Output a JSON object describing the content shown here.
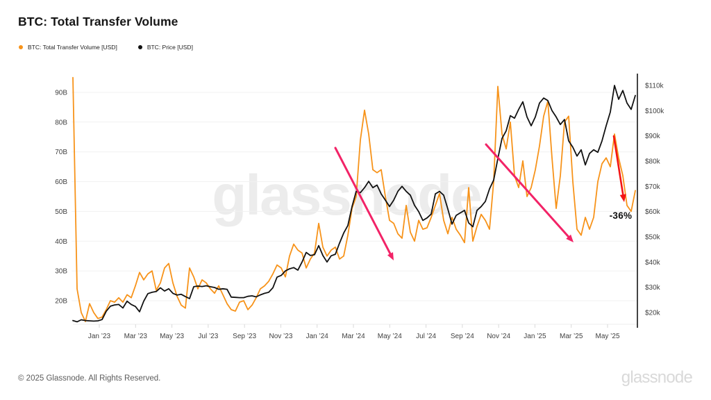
{
  "page": {
    "title": "BTC: Total Transfer Volume",
    "watermark": "glassnode",
    "footer": {
      "copyright": "© 2025 Glassnode. All Rights Reserved.",
      "brand": "glassnode"
    }
  },
  "legend": {
    "items": [
      {
        "label": "BTC: Total Transfer Volume [USD]",
        "color": "#f7931a"
      },
      {
        "label": "BTC: Price [USD]",
        "color": "#111111"
      }
    ]
  },
  "chart_data": {
    "type": "line",
    "title": "BTC: Total Transfer Volume",
    "grid": "horizontal",
    "legend_position": "top-left",
    "x_axis": {
      "tick_labels": [
        "Jan ’23",
        "Mar ’23",
        "May ’23",
        "Jul ’23",
        "Sep ’23",
        "Nov ’23",
        "Jan ’24",
        "Mar ’24",
        "May ’24",
        "Jul ’24",
        "Sep ’24",
        "Nov ’24",
        "Jan ’25",
        "Mar ’25",
        "May ’25"
      ],
      "range": [
        "mid Nov 2022",
        "late Jun 2025"
      ]
    },
    "left_axis": {
      "unit": "billion USD (transfer volume)",
      "tick_labels": [
        "20B",
        "30B",
        "40B",
        "50B",
        "60B",
        "70B",
        "80B",
        "90B"
      ],
      "tick_values": [
        20,
        30,
        40,
        50,
        60,
        70,
        80,
        90
      ],
      "ylim": [
        12,
        95.5
      ]
    },
    "right_axis": {
      "unit": "thousand USD (price)",
      "tick_labels": [
        "$20k",
        "$30k",
        "$40k",
        "$50k",
        "$60k",
        "$70k",
        "$80k",
        "$90k",
        "$100k",
        "$110k"
      ],
      "tick_values": [
        20,
        30,
        40,
        50,
        60,
        70,
        80,
        90,
        100,
        110
      ],
      "ylim": [
        15,
        113
      ]
    },
    "sampling": "approx weekly points, mid-Nov 2022 to late Jun 2025",
    "series": [
      {
        "name": "BTC: Total Transfer Volume [USD]",
        "axis": "left",
        "color": "#f7931a",
        "unit": "billion USD",
        "values": [
          95,
          24,
          16,
          13,
          19,
          16,
          14,
          14.5,
          17,
          20,
          19.5,
          21,
          19.5,
          22,
          21,
          25,
          29.5,
          27,
          29,
          30,
          23.5,
          26,
          31,
          32.5,
          26,
          21.5,
          18.5,
          17.5,
          31,
          28,
          24,
          27,
          26,
          24,
          22.5,
          25,
          22,
          19,
          17,
          16.5,
          19.5,
          20,
          17,
          18.5,
          21,
          24,
          25,
          26.5,
          29,
          32,
          31,
          28,
          35,
          39,
          37,
          36,
          31,
          34,
          36,
          46,
          38,
          35,
          37,
          38,
          34,
          35,
          42,
          51,
          55,
          74,
          84,
          76,
          64,
          63,
          64,
          55,
          47,
          46,
          42.5,
          41,
          52,
          43,
          40,
          47,
          44,
          44.5,
          48,
          52,
          56,
          47,
          42.5,
          48,
          44,
          42,
          39.5,
          58,
          40,
          45,
          49,
          47,
          44,
          60,
          92,
          76,
          71,
          80,
          62,
          58,
          67,
          55,
          58,
          64,
          72,
          82,
          87,
          68,
          51,
          62,
          80,
          82,
          60,
          44,
          42,
          48,
          44,
          48,
          60,
          66,
          68,
          65,
          76,
          68,
          62,
          52,
          50,
          57
        ]
      },
      {
        "name": "BTC: Price [USD]",
        "axis": "right",
        "color": "#111111",
        "unit": "thousand USD",
        "values": [
          16.8,
          16.3,
          17.1,
          16.8,
          16.7,
          16.6,
          16.7,
          17.2,
          20.5,
          22.5,
          23,
          23.2,
          21.8,
          24.5,
          23.2,
          22.4,
          20.3,
          24.5,
          27.5,
          28,
          28.3,
          29.8,
          28.5,
          29.4,
          27.6,
          26.9,
          27.2,
          26.3,
          25.5,
          30.2,
          30.5,
          30.3,
          30.6,
          30.2,
          29.9,
          29.2,
          29.4,
          29.2,
          26.1,
          26,
          25.9,
          25.9,
          26.4,
          26.6,
          26.2,
          27,
          27.6,
          28,
          29.8,
          34,
          34.7,
          36.5,
          37.3,
          37.8,
          36.8,
          40,
          43.8,
          42.6,
          42.9,
          46.5,
          42.6,
          40,
          42.5,
          43.1,
          47.5,
          51.5,
          54.5,
          62,
          68,
          67.5,
          69.5,
          72,
          69.5,
          70.5,
          67,
          64.5,
          62,
          64.5,
          68,
          70,
          68,
          66.5,
          62.5,
          60,
          56.5,
          57.5,
          59,
          67,
          68,
          66.5,
          61,
          55,
          58.5,
          59.5,
          60.5,
          55.5,
          54,
          60.5,
          62,
          64,
          69,
          72.5,
          81,
          89,
          92,
          98,
          97,
          100.5,
          103.5,
          97.5,
          94,
          97.5,
          103,
          105,
          104,
          100,
          97.5,
          94.5,
          96.5,
          88,
          85.5,
          82,
          84.5,
          78.5,
          83,
          84.5,
          83.5,
          88,
          94,
          99.5,
          110,
          104.5,
          108,
          103,
          100.5,
          106
        ]
      }
    ],
    "annotations": {
      "drop_label": "-36%",
      "arrows": [
        {
          "from": [
            483,
            213
          ],
          "to": [
            567,
            375
          ],
          "color": "#f22367",
          "width": 3
        },
        {
          "from": [
            700,
            208
          ],
          "to": [
            826,
            349
          ],
          "color": "#f22367",
          "width": 3
        },
        {
          "from": [
            884,
            196
          ],
          "to": [
            899,
            291
          ],
          "color": "#f31414",
          "width": 2.6
        }
      ]
    },
    "style_colors": {
      "gridline": "#f1f1f1",
      "axis_text": "#404040",
      "right_axis_line": "#141414",
      "watermark": "#ececec"
    }
  }
}
